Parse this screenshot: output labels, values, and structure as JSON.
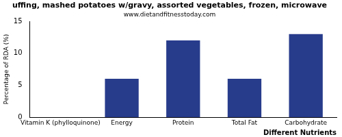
{
  "chart_data": {
    "type": "bar",
    "title": "uffing, mashed potatoes w/gravy, assorted vegetables, frozen, microwave",
    "subtitle": "www.dietandfitnesstoday.com",
    "x_label": "Different Nutrients",
    "y_label": "Percentage of RDA (%)",
    "categories": [
      "Vitamin K (phylloquinone)",
      "Energy",
      "Protein",
      "Total Fat",
      "Carbohydrate"
    ],
    "values": [
      0,
      6,
      12,
      6,
      13
    ],
    "color": "#283c8c",
    "ylim": [
      0,
      15
    ],
    "yticks": [
      0,
      5,
      10,
      15
    ],
    "grid": false
  }
}
